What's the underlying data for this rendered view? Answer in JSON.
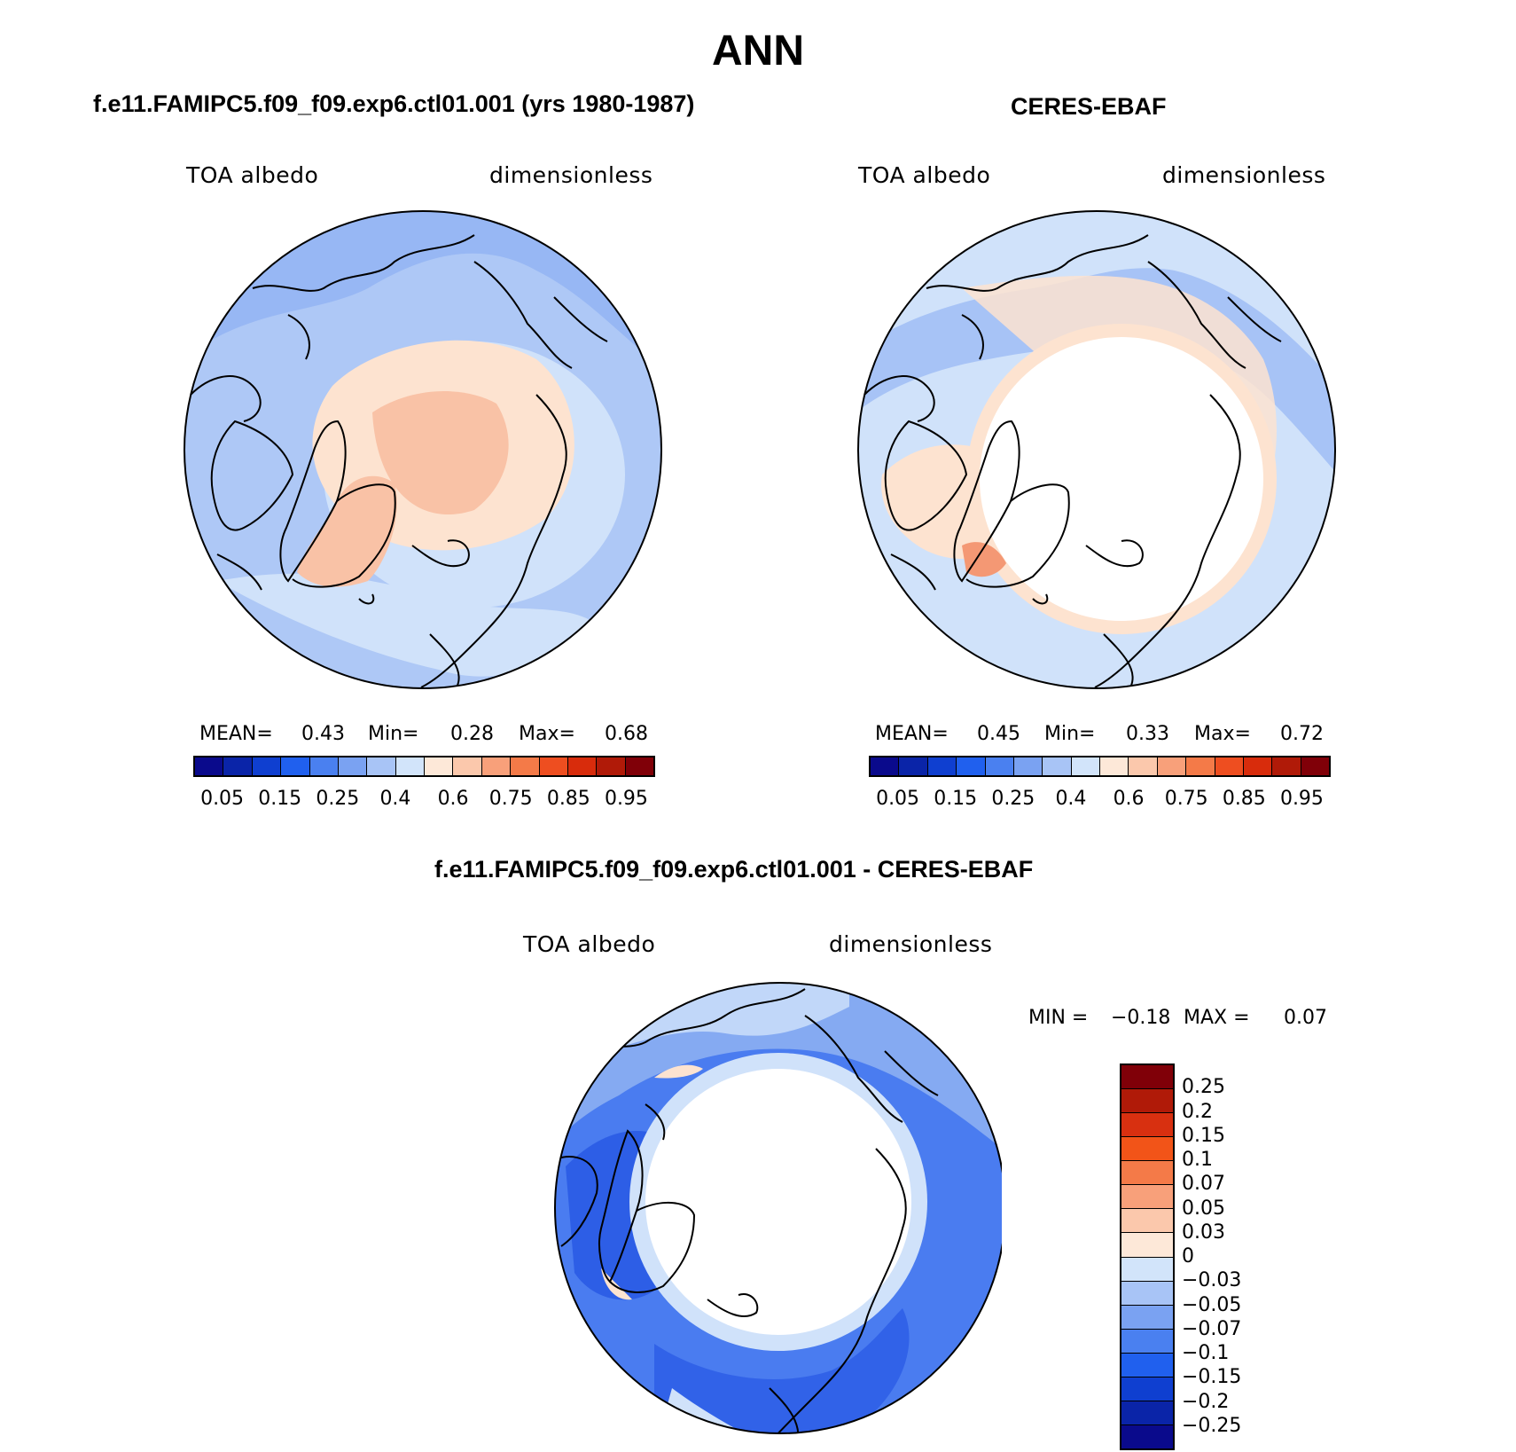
{
  "title": "ANN",
  "panels": {
    "model": {
      "title": "f.e11.FAMIPC5.f09_f09.exp6.ctl01.001 (yrs 1980-1987)",
      "left_label": "TOA albedo",
      "right_label": "dimensionless",
      "mean_label": "MEAN=",
      "mean": "0.43",
      "min_label": "Min=",
      "min": "0.28",
      "max_label": "Max=",
      "max": "0.68"
    },
    "obs": {
      "title": "CERES-EBAF",
      "left_label": "TOA albedo",
      "right_label": "dimensionless",
      "mean_label": "MEAN=",
      "mean": "0.45",
      "min_label": "Min=",
      "min": "0.33",
      "max_label": "Max=",
      "max": "0.72"
    },
    "diff": {
      "title": "f.e11.FAMIPC5.f09_f09.exp6.ctl01.001 - CERES-EBAF",
      "left_label": "TOA albedo",
      "right_label": "dimensionless",
      "min_label": "MIN =",
      "min": "−0.18",
      "max_label": "MAX =",
      "max": "0.07"
    }
  },
  "colorbar_abs": {
    "colors": [
      "#0a0a8c",
      "#0a24a8",
      "#0f3fd0",
      "#2060ee",
      "#4a80f0",
      "#7aa2f2",
      "#a8c4f6",
      "#d2e4fa",
      "#fde8d8",
      "#fbc8ac",
      "#f8a07a",
      "#f47a48",
      "#ee4e20",
      "#d82c0c",
      "#b01a08",
      "#800008"
    ],
    "ticks": [
      "0.05",
      "0.15",
      "0.25",
      "0.4",
      "0.6",
      "0.75",
      "0.85",
      "0.95"
    ]
  },
  "colorbar_diff": {
    "colors": [
      "#800008",
      "#b01a08",
      "#d83010",
      "#f25418",
      "#f47a48",
      "#f8a07a",
      "#fbc8ac",
      "#fde8d8",
      "#d2e4fa",
      "#a8c4f6",
      "#7aa2f2",
      "#4a80f0",
      "#2060ee",
      "#0f3fd0",
      "#0a24a8",
      "#0a0a8c"
    ],
    "ticks": [
      "0.25",
      "0.2",
      "0.15",
      "0.1",
      "0.07",
      "0.05",
      "0.03",
      "0",
      "−0.03",
      "−0.05",
      "−0.07",
      "−0.1",
      "−0.15",
      "−0.2",
      "−0.25"
    ]
  },
  "map_colors": {
    "bg_model": "#aec8f6",
    "light_blue": "#d0e2fa",
    "mid_blue": "#85aaf2",
    "peach": "#fde3d0",
    "salmon": "#f9c2a6",
    "orange": "#f49874",
    "white": "#ffffff",
    "deep_blue": "#2d5ee6",
    "blue": "#4a7cf0"
  }
}
